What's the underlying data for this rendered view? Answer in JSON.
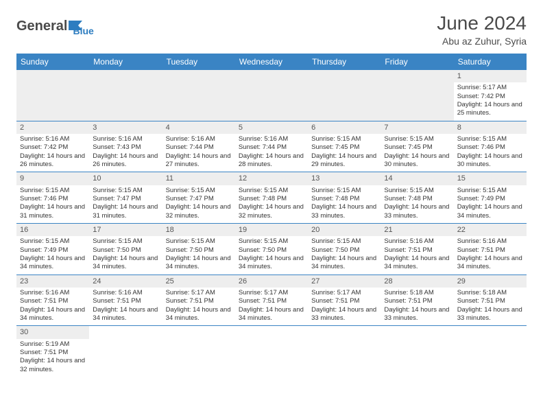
{
  "header": {
    "logo_general": "General",
    "logo_blue": "Blue",
    "month_title": "June 2024",
    "location": "Abu az Zuhur, Syria"
  },
  "colors": {
    "header_bg": "#3a84c4",
    "header_text": "#ffffff",
    "daynum_bg": "#eeeeee",
    "divider": "#3a84c4",
    "logo_gray": "#4a4a4a",
    "logo_blue": "#2d7dc0"
  },
  "day_names": [
    "Sunday",
    "Monday",
    "Tuesday",
    "Wednesday",
    "Thursday",
    "Friday",
    "Saturday"
  ],
  "cells": [
    {
      "day": "",
      "sunrise": "",
      "sunset": "",
      "daylight": ""
    },
    {
      "day": "",
      "sunrise": "",
      "sunset": "",
      "daylight": ""
    },
    {
      "day": "",
      "sunrise": "",
      "sunset": "",
      "daylight": ""
    },
    {
      "day": "",
      "sunrise": "",
      "sunset": "",
      "daylight": ""
    },
    {
      "day": "",
      "sunrise": "",
      "sunset": "",
      "daylight": ""
    },
    {
      "day": "",
      "sunrise": "",
      "sunset": "",
      "daylight": ""
    },
    {
      "day": "1",
      "sunrise": "Sunrise: 5:17 AM",
      "sunset": "Sunset: 7:42 PM",
      "daylight": "Daylight: 14 hours and 25 minutes."
    },
    {
      "day": "2",
      "sunrise": "Sunrise: 5:16 AM",
      "sunset": "Sunset: 7:42 PM",
      "daylight": "Daylight: 14 hours and 26 minutes."
    },
    {
      "day": "3",
      "sunrise": "Sunrise: 5:16 AM",
      "sunset": "Sunset: 7:43 PM",
      "daylight": "Daylight: 14 hours and 26 minutes."
    },
    {
      "day": "4",
      "sunrise": "Sunrise: 5:16 AM",
      "sunset": "Sunset: 7:44 PM",
      "daylight": "Daylight: 14 hours and 27 minutes."
    },
    {
      "day": "5",
      "sunrise": "Sunrise: 5:16 AM",
      "sunset": "Sunset: 7:44 PM",
      "daylight": "Daylight: 14 hours and 28 minutes."
    },
    {
      "day": "6",
      "sunrise": "Sunrise: 5:15 AM",
      "sunset": "Sunset: 7:45 PM",
      "daylight": "Daylight: 14 hours and 29 minutes."
    },
    {
      "day": "7",
      "sunrise": "Sunrise: 5:15 AM",
      "sunset": "Sunset: 7:45 PM",
      "daylight": "Daylight: 14 hours and 30 minutes."
    },
    {
      "day": "8",
      "sunrise": "Sunrise: 5:15 AM",
      "sunset": "Sunset: 7:46 PM",
      "daylight": "Daylight: 14 hours and 30 minutes."
    },
    {
      "day": "9",
      "sunrise": "Sunrise: 5:15 AM",
      "sunset": "Sunset: 7:46 PM",
      "daylight": "Daylight: 14 hours and 31 minutes."
    },
    {
      "day": "10",
      "sunrise": "Sunrise: 5:15 AM",
      "sunset": "Sunset: 7:47 PM",
      "daylight": "Daylight: 14 hours and 31 minutes."
    },
    {
      "day": "11",
      "sunrise": "Sunrise: 5:15 AM",
      "sunset": "Sunset: 7:47 PM",
      "daylight": "Daylight: 14 hours and 32 minutes."
    },
    {
      "day": "12",
      "sunrise": "Sunrise: 5:15 AM",
      "sunset": "Sunset: 7:48 PM",
      "daylight": "Daylight: 14 hours and 32 minutes."
    },
    {
      "day": "13",
      "sunrise": "Sunrise: 5:15 AM",
      "sunset": "Sunset: 7:48 PM",
      "daylight": "Daylight: 14 hours and 33 minutes."
    },
    {
      "day": "14",
      "sunrise": "Sunrise: 5:15 AM",
      "sunset": "Sunset: 7:48 PM",
      "daylight": "Daylight: 14 hours and 33 minutes."
    },
    {
      "day": "15",
      "sunrise": "Sunrise: 5:15 AM",
      "sunset": "Sunset: 7:49 PM",
      "daylight": "Daylight: 14 hours and 34 minutes."
    },
    {
      "day": "16",
      "sunrise": "Sunrise: 5:15 AM",
      "sunset": "Sunset: 7:49 PM",
      "daylight": "Daylight: 14 hours and 34 minutes."
    },
    {
      "day": "17",
      "sunrise": "Sunrise: 5:15 AM",
      "sunset": "Sunset: 7:50 PM",
      "daylight": "Daylight: 14 hours and 34 minutes."
    },
    {
      "day": "18",
      "sunrise": "Sunrise: 5:15 AM",
      "sunset": "Sunset: 7:50 PM",
      "daylight": "Daylight: 14 hours and 34 minutes."
    },
    {
      "day": "19",
      "sunrise": "Sunrise: 5:15 AM",
      "sunset": "Sunset: 7:50 PM",
      "daylight": "Daylight: 14 hours and 34 minutes."
    },
    {
      "day": "20",
      "sunrise": "Sunrise: 5:15 AM",
      "sunset": "Sunset: 7:50 PM",
      "daylight": "Daylight: 14 hours and 34 minutes."
    },
    {
      "day": "21",
      "sunrise": "Sunrise: 5:16 AM",
      "sunset": "Sunset: 7:51 PM",
      "daylight": "Daylight: 14 hours and 34 minutes."
    },
    {
      "day": "22",
      "sunrise": "Sunrise: 5:16 AM",
      "sunset": "Sunset: 7:51 PM",
      "daylight": "Daylight: 14 hours and 34 minutes."
    },
    {
      "day": "23",
      "sunrise": "Sunrise: 5:16 AM",
      "sunset": "Sunset: 7:51 PM",
      "daylight": "Daylight: 14 hours and 34 minutes."
    },
    {
      "day": "24",
      "sunrise": "Sunrise: 5:16 AM",
      "sunset": "Sunset: 7:51 PM",
      "daylight": "Daylight: 14 hours and 34 minutes."
    },
    {
      "day": "25",
      "sunrise": "Sunrise: 5:17 AM",
      "sunset": "Sunset: 7:51 PM",
      "daylight": "Daylight: 14 hours and 34 minutes."
    },
    {
      "day": "26",
      "sunrise": "Sunrise: 5:17 AM",
      "sunset": "Sunset: 7:51 PM",
      "daylight": "Daylight: 14 hours and 34 minutes."
    },
    {
      "day": "27",
      "sunrise": "Sunrise: 5:17 AM",
      "sunset": "Sunset: 7:51 PM",
      "daylight": "Daylight: 14 hours and 33 minutes."
    },
    {
      "day": "28",
      "sunrise": "Sunrise: 5:18 AM",
      "sunset": "Sunset: 7:51 PM",
      "daylight": "Daylight: 14 hours and 33 minutes."
    },
    {
      "day": "29",
      "sunrise": "Sunrise: 5:18 AM",
      "sunset": "Sunset: 7:51 PM",
      "daylight": "Daylight: 14 hours and 33 minutes."
    },
    {
      "day": "30",
      "sunrise": "Sunrise: 5:19 AM",
      "sunset": "Sunset: 7:51 PM",
      "daylight": "Daylight: 14 hours and 32 minutes."
    },
    {
      "day": "",
      "sunrise": "",
      "sunset": "",
      "daylight": ""
    },
    {
      "day": "",
      "sunrise": "",
      "sunset": "",
      "daylight": ""
    },
    {
      "day": "",
      "sunrise": "",
      "sunset": "",
      "daylight": ""
    },
    {
      "day": "",
      "sunrise": "",
      "sunset": "",
      "daylight": ""
    },
    {
      "day": "",
      "sunrise": "",
      "sunset": "",
      "daylight": ""
    },
    {
      "day": "",
      "sunrise": "",
      "sunset": "",
      "daylight": ""
    }
  ]
}
